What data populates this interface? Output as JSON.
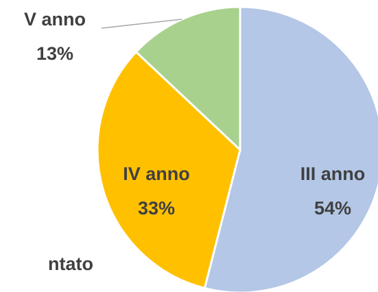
{
  "chart_data": {
    "type": "pie",
    "categories": [
      "III anno",
      "IV anno",
      "V anno"
    ],
    "values": [
      54,
      33,
      13
    ],
    "value_labels": [
      "54%",
      "33%",
      "13%"
    ],
    "colors": [
      "#b4c7e7",
      "#ffc000",
      "#a9d18e"
    ],
    "annotations": [
      "ntato"
    ]
  }
}
